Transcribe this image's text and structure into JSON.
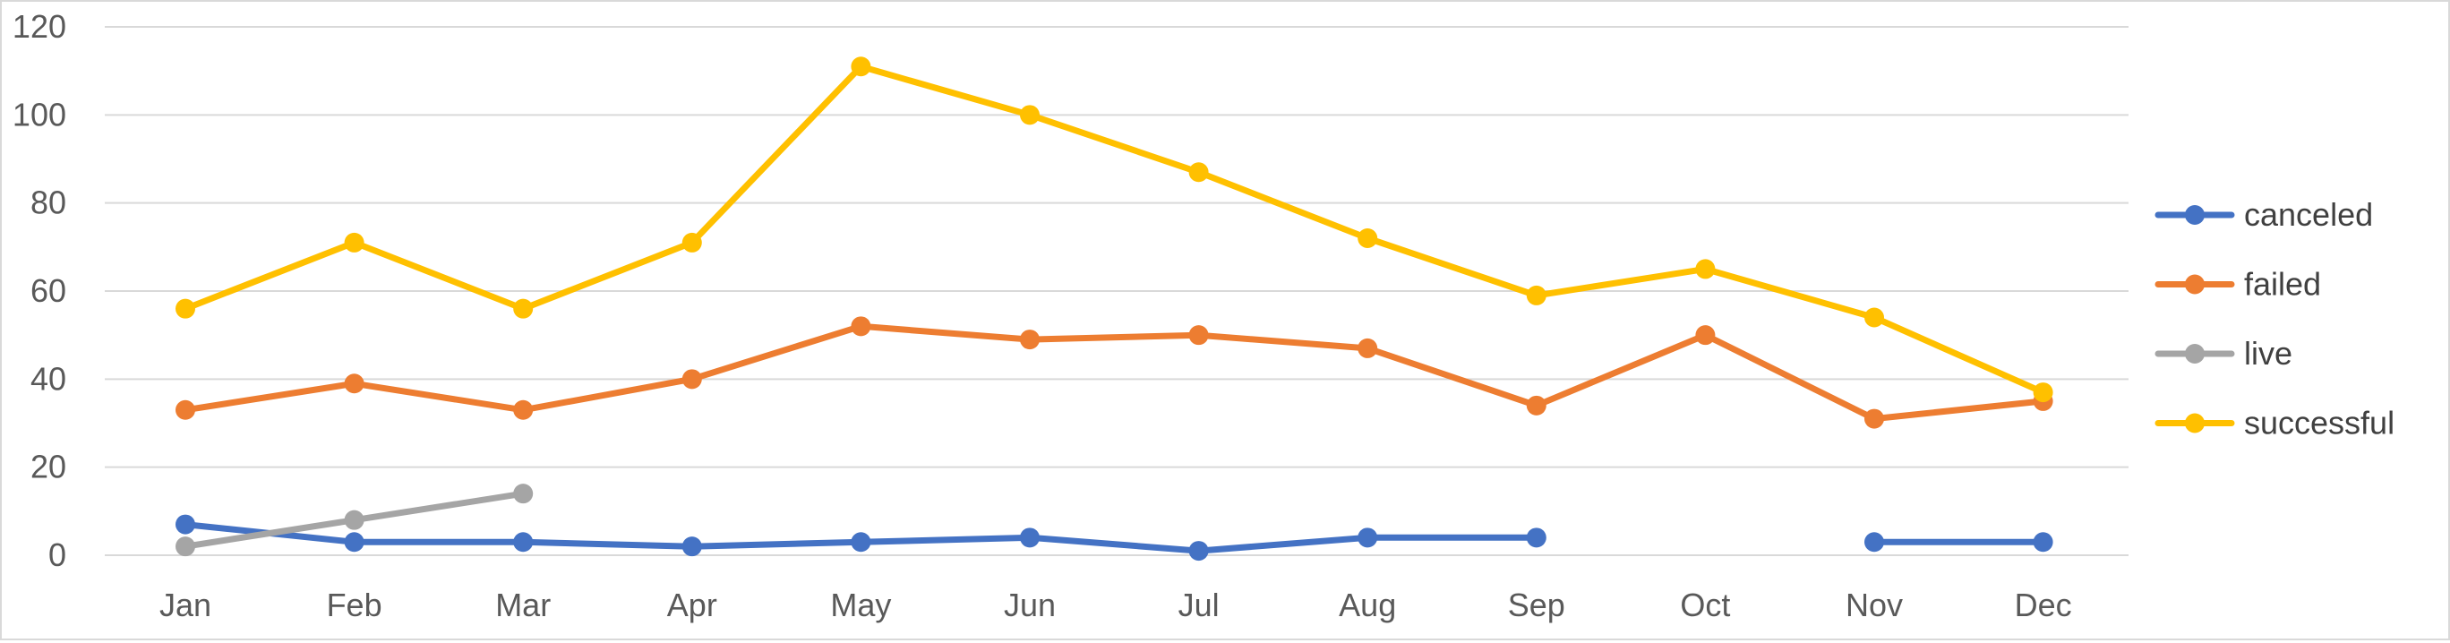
{
  "chart_data": {
    "type": "line",
    "title": "",
    "xlabel": "",
    "ylabel": "",
    "categories": [
      "Jan",
      "Feb",
      "Mar",
      "Apr",
      "May",
      "Jun",
      "Jul",
      "Aug",
      "Sep",
      "Oct",
      "Nov",
      "Dec"
    ],
    "ylim": [
      0,
      120
    ],
    "yticks": [
      0,
      20,
      40,
      60,
      80,
      100,
      120
    ],
    "grid": true,
    "legend_position": "right",
    "series": [
      {
        "name": "canceled",
        "color": "#4472C4",
        "values": [
          7,
          3,
          3,
          2,
          3,
          4,
          1,
          4,
          4,
          null,
          3,
          3
        ]
      },
      {
        "name": "failed",
        "color": "#ED7D31",
        "values": [
          33,
          39,
          33,
          40,
          52,
          49,
          50,
          47,
          34,
          50,
          31,
          35
        ]
      },
      {
        "name": "live",
        "color": "#A5A5A5",
        "values": [
          2,
          8,
          14,
          null,
          null,
          null,
          null,
          null,
          null,
          null,
          null,
          null
        ]
      },
      {
        "name": "successful",
        "color": "#FFC000",
        "values": [
          56,
          71,
          56,
          71,
          111,
          100,
          87,
          72,
          59,
          65,
          54,
          37
        ]
      }
    ]
  }
}
